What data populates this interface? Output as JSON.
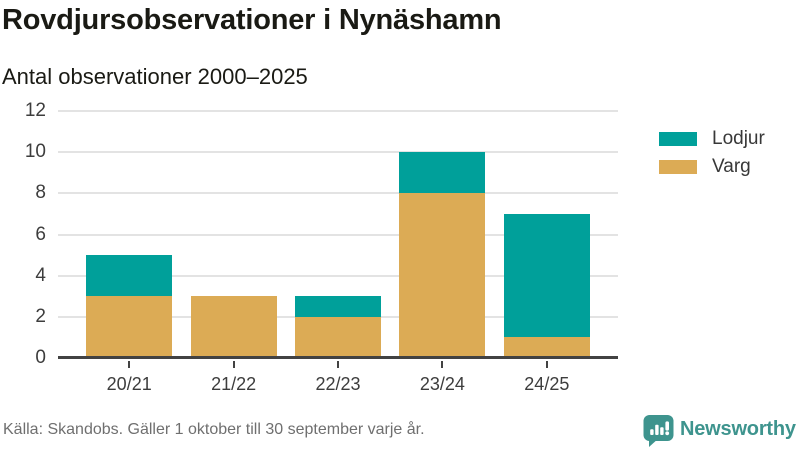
{
  "chart_data": {
    "type": "bar",
    "stacked": true,
    "title": "Rovdjursobservationer i Nynäshamn",
    "subtitle": "Antal observationer 2000–2025",
    "categories": [
      "20/21",
      "21/22",
      "22/23",
      "23/24",
      "24/25"
    ],
    "series": [
      {
        "name": "Lodjur",
        "color": "#00a09a",
        "values": [
          2,
          0,
          1,
          2,
          6
        ]
      },
      {
        "name": "Varg",
        "color": "#dcab55",
        "values": [
          3,
          3,
          2,
          8,
          1
        ]
      }
    ],
    "totals": [
      5,
      3,
      3,
      10,
      7
    ],
    "ylim": [
      0,
      12
    ],
    "yticks": [
      0,
      2,
      4,
      6,
      8,
      10,
      12
    ],
    "grid": true,
    "legend_position": "right-top",
    "stack_order_bottom_to_top": [
      "Varg",
      "Lodjur"
    ]
  },
  "footer": {
    "source": "Källa: Skandobs. Gäller 1 oktober till 30 september varje år.",
    "brand": "Newsworthy"
  },
  "colors": {
    "lodjur": "#00a09a",
    "varg": "#dcab55",
    "brand_teal": "#3e948e",
    "grid": "#e3e3e3",
    "axis": "#424242",
    "text_dark": "#1a1a14",
    "text_axis": "#3d3d3d",
    "text_source": "#6f6f6f"
  }
}
